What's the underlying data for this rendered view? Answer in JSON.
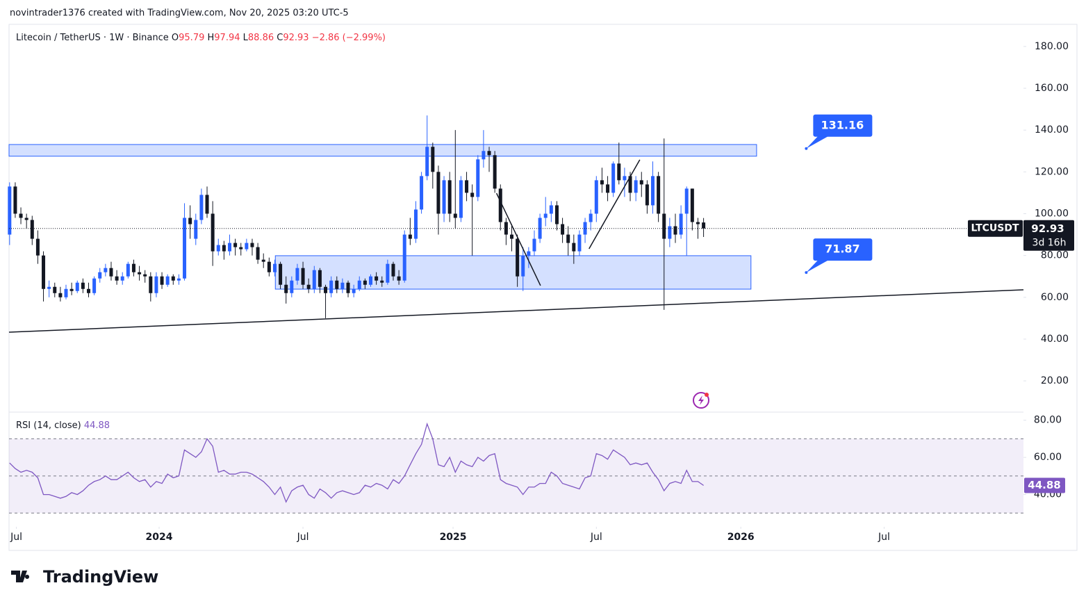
{
  "header": "novintrader1376 created with TradingView.com, Nov 20, 2025 03:20 UTC-5",
  "brand": "TradingView",
  "chart_data": {
    "type": "candlestick",
    "title": "Litecoin / TetherUS · 1W · Binance",
    "ohlc_names": [
      "O",
      "H",
      "L",
      "C"
    ],
    "change": {
      "value": -2.86,
      "label": "−2.86"
    },
    "change_percent": {
      "value": -2.99,
      "label": "(−2.99%)"
    },
    "symbol": "LTCUSDT",
    "countdown": "3d 16h",
    "up_color": "#2962ff",
    "down_color": "#131722",
    "candles": [
      [
        90,
        115,
        85,
        113
      ],
      [
        113,
        115,
        98,
        100
      ],
      [
        100,
        103,
        95,
        98
      ],
      [
        98,
        100,
        93,
        97
      ],
      [
        97,
        99,
        85,
        88
      ],
      [
        88,
        92,
        76,
        80
      ],
      [
        80,
        82,
        58,
        64
      ],
      [
        64,
        68,
        60,
        65
      ],
      [
        65,
        67,
        60,
        62
      ],
      [
        62,
        65,
        58,
        60
      ],
      [
        60,
        66,
        59,
        64
      ],
      [
        64,
        67,
        61,
        63
      ],
      [
        63,
        68,
        62,
        67
      ],
      [
        67,
        69,
        62,
        64
      ],
      [
        64,
        67,
        60,
        62
      ],
      [
        62,
        70,
        61,
        69
      ],
      [
        69,
        74,
        67,
        72
      ],
      [
        72,
        76,
        70,
        74
      ],
      [
        74,
        77,
        68,
        70
      ],
      [
        70,
        73,
        66,
        68
      ],
      [
        68,
        72,
        66,
        70
      ],
      [
        70,
        77,
        69,
        76
      ],
      [
        76,
        78,
        70,
        72
      ],
      [
        72,
        75,
        68,
        71
      ],
      [
        71,
        73,
        67,
        70
      ],
      [
        70,
        72,
        58,
        62
      ],
      [
        62,
        72,
        60,
        70
      ],
      [
        70,
        72,
        64,
        66
      ],
      [
        66,
        71,
        65,
        70
      ],
      [
        70,
        71,
        66,
        68
      ],
      [
        68,
        71,
        66,
        69
      ],
      [
        69,
        105,
        68,
        98
      ],
      [
        98,
        104,
        88,
        95
      ],
      [
        88,
        100,
        85,
        97
      ],
      [
        97,
        112,
        95,
        109
      ],
      [
        109,
        113,
        98,
        100
      ],
      [
        100,
        106,
        75,
        82
      ],
      [
        82,
        88,
        80,
        85
      ],
      [
        85,
        87,
        78,
        82
      ],
      [
        82,
        90,
        80,
        86
      ],
      [
        86,
        88,
        80,
        84
      ],
      [
        84,
        86,
        80,
        83
      ],
      [
        83,
        88,
        82,
        86
      ],
      [
        86,
        88,
        80,
        84
      ],
      [
        84,
        86,
        76,
        78
      ],
      [
        78,
        81,
        74,
        77
      ],
      [
        77,
        79,
        70,
        72
      ],
      [
        72,
        78,
        70,
        76
      ],
      [
        76,
        77,
        64,
        66
      ],
      [
        66,
        70,
        57,
        62
      ],
      [
        62,
        70,
        60,
        68
      ],
      [
        68,
        76,
        66,
        74
      ],
      [
        74,
        77,
        64,
        66
      ],
      [
        66,
        69,
        62,
        64
      ],
      [
        64,
        75,
        62,
        73
      ],
      [
        73,
        74,
        62,
        65
      ],
      [
        65,
        66,
        50,
        62
      ],
      [
        62,
        70,
        60,
        68
      ],
      [
        68,
        70,
        62,
        64
      ],
      [
        64,
        69,
        62,
        67
      ],
      [
        67,
        68,
        60,
        62
      ],
      [
        62,
        66,
        60,
        64
      ],
      [
        64,
        70,
        63,
        68
      ],
      [
        68,
        69,
        64,
        66
      ],
      [
        66,
        71,
        65,
        70
      ],
      [
        70,
        72,
        66,
        68
      ],
      [
        68,
        70,
        65,
        67
      ],
      [
        67,
        78,
        66,
        76
      ],
      [
        76,
        77,
        68,
        70
      ],
      [
        70,
        73,
        66,
        68
      ],
      [
        68,
        92,
        67,
        90
      ],
      [
        90,
        98,
        85,
        88
      ],
      [
        88,
        106,
        86,
        102
      ],
      [
        102,
        120,
        100,
        118
      ],
      [
        118,
        147,
        116,
        132
      ],
      [
        132,
        134,
        112,
        120
      ],
      [
        120,
        123,
        90,
        100
      ],
      [
        100,
        118,
        96,
        116
      ],
      [
        116,
        120,
        96,
        100
      ],
      [
        100,
        140,
        93,
        98
      ],
      [
        98,
        118,
        96,
        116
      ],
      [
        116,
        120,
        106,
        110
      ],
      [
        110,
        114,
        80,
        108
      ],
      [
        108,
        128,
        106,
        126
      ],
      [
        126,
        140,
        122,
        130
      ],
      [
        130,
        132,
        120,
        128
      ],
      [
        128,
        130,
        110,
        112
      ],
      [
        112,
        114,
        92,
        96
      ],
      [
        96,
        98,
        85,
        90
      ],
      [
        90,
        95,
        82,
        88
      ],
      [
        88,
        90,
        65,
        70
      ],
      [
        70,
        84,
        63,
        80
      ],
      [
        80,
        84,
        74,
        82
      ],
      [
        82,
        92,
        80,
        88
      ],
      [
        88,
        100,
        86,
        98
      ],
      [
        98,
        108,
        94,
        100
      ],
      [
        100,
        106,
        96,
        104
      ],
      [
        104,
        106,
        92,
        95
      ],
      [
        95,
        98,
        86,
        90
      ],
      [
        90,
        94,
        80,
        86
      ],
      [
        86,
        90,
        76,
        82
      ],
      [
        82,
        92,
        80,
        90
      ],
      [
        90,
        98,
        86,
        96
      ],
      [
        96,
        102,
        92,
        100
      ],
      [
        100,
        118,
        96,
        116
      ],
      [
        116,
        122,
        110,
        114
      ],
      [
        114,
        118,
        106,
        110
      ],
      [
        110,
        125,
        108,
        124
      ],
      [
        124,
        134,
        114,
        116
      ],
      [
        116,
        122,
        108,
        118
      ],
      [
        118,
        120,
        106,
        110
      ],
      [
        110,
        118,
        106,
        116
      ],
      [
        116,
        120,
        108,
        114
      ],
      [
        114,
        116,
        100,
        104
      ],
      [
        104,
        125,
        100,
        118
      ],
      [
        118,
        120,
        96,
        100
      ],
      [
        100,
        136,
        54,
        88
      ],
      [
        88,
        98,
        84,
        94
      ],
      [
        94,
        100,
        86,
        90
      ],
      [
        90,
        104,
        88,
        100
      ],
      [
        100,
        113,
        80,
        112
      ],
      [
        112,
        112,
        92,
        96
      ],
      [
        96,
        98,
        88,
        95
      ],
      [
        95.79,
        97.94,
        88.86,
        92.93
      ]
    ],
    "xlim": [
      -0.1,
      179.7
    ],
    "xticks": [
      {
        "value": 1.2,
        "label": "Jul"
      },
      {
        "value": 26.5,
        "label": "2024"
      },
      {
        "value": 52,
        "label": "Jul"
      },
      {
        "value": 78.6,
        "label": "2025"
      },
      {
        "value": 104,
        "label": "Jul"
      },
      {
        "value": 129.6,
        "label": "2026"
      },
      {
        "value": 155,
        "label": "Jul"
      }
    ],
    "ylim": [
      5.4,
      190.6
    ],
    "yticks": [
      {
        "value": 20,
        "label": "20.00"
      },
      {
        "value": 40,
        "label": "40.00"
      },
      {
        "value": 60,
        "label": "60.00"
      },
      {
        "value": 80,
        "label": "80.00"
      },
      {
        "value": 100,
        "label": "100.00"
      },
      {
        "value": 120,
        "label": "120.00"
      },
      {
        "value": 140,
        "label": "140.00"
      },
      {
        "value": 160,
        "label": "160.00"
      },
      {
        "value": 180,
        "label": "180.00"
      }
    ],
    "zones": [
      {
        "x": [
          -0.1,
          132.4
        ],
        "y": [
          127.5,
          133.1
        ]
      },
      {
        "x": [
          47.1,
          131.4
        ],
        "y": [
          63.9,
          79.9
        ]
      }
    ],
    "lines": [
      {
        "x": [
          -0.1,
          179.7
        ],
        "y": [
          43.3,
          63.6
        ]
      },
      {
        "x": [
          86.3,
          94.1
        ],
        "y": [
          109.8,
          65.6
        ]
      },
      {
        "x": [
          102.7,
          111.7
        ],
        "y": [
          83.2,
          125.8
        ]
      }
    ],
    "callouts": [
      {
        "x": 141.2,
        "value": 131.16
      },
      {
        "x": 141.2,
        "value": 71.87
      }
    ],
    "rsi": {
      "type": "line",
      "title": "RSI (14, close)",
      "color": "#7e57c2",
      "values": [
        57,
        54,
        52,
        53,
        52,
        49,
        40,
        40,
        39,
        38,
        39,
        41,
        40,
        42,
        45,
        47,
        48,
        50,
        48,
        48,
        50,
        52,
        49,
        47,
        48,
        44,
        47,
        46,
        51,
        49,
        50,
        64,
        62,
        60,
        63,
        70,
        66,
        52,
        53,
        51,
        51,
        52,
        52,
        51,
        49,
        47,
        44,
        40,
        44,
        36,
        42,
        44,
        45,
        40,
        38,
        43,
        41,
        38,
        41,
        42,
        41,
        40,
        41,
        45,
        44,
        46,
        45,
        43,
        48,
        46,
        50,
        56,
        62,
        67,
        78,
        70,
        56,
        55,
        60,
        52,
        58,
        56,
        55,
        60,
        58,
        61,
        62,
        48,
        46,
        45,
        44,
        40,
        44,
        44,
        46,
        46,
        52,
        50,
        46,
        45,
        44,
        43,
        49,
        50,
        62,
        61,
        59,
        64,
        62,
        60,
        56,
        57,
        56,
        57,
        52,
        48,
        42,
        46,
        47,
        46,
        53,
        47,
        47,
        44.88
      ],
      "ylim": [
        26,
        84
      ],
      "yticks": [
        {
          "value": 40,
          "label": "40.00"
        },
        {
          "value": 60,
          "label": "60.00"
        },
        {
          "value": 80,
          "label": "80.00"
        }
      ],
      "band": [
        30,
        70
      ],
      "mid": 50
    }
  }
}
